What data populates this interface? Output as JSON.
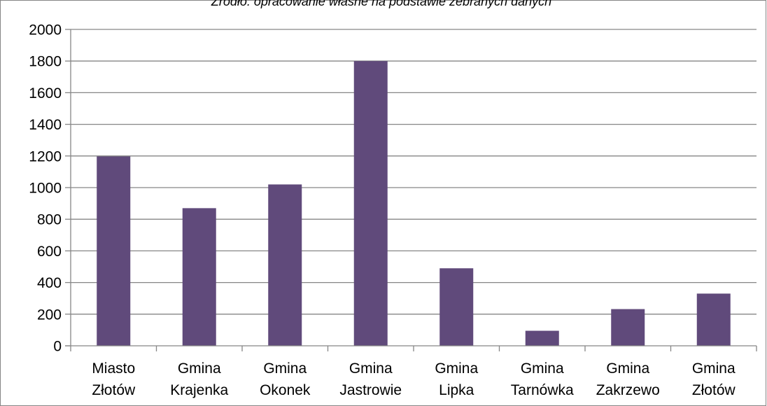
{
  "source_note": "Źródło: opracowanie własne na podstawie zebranych danych",
  "colors": {
    "bar": "#604A7B",
    "grid": "#868686",
    "axis": "#868686",
    "frame": "#868686"
  },
  "chart_data": {
    "type": "bar",
    "title": "",
    "xlabel": "",
    "ylabel": "",
    "ylim": [
      0,
      2000
    ],
    "yticks": [
      0,
      200,
      400,
      600,
      800,
      1000,
      1200,
      1400,
      1600,
      1800,
      2000
    ],
    "grid": true,
    "legend": "none",
    "categories": [
      [
        "Miasto",
        "Złotów"
      ],
      [
        "Gmina",
        "Krajenka"
      ],
      [
        "Gmina",
        "Okonek"
      ],
      [
        "Gmina",
        "Jastrowie"
      ],
      [
        "Gmina",
        "Lipka"
      ],
      [
        "Gmina",
        "Tarnówka"
      ],
      [
        "Gmina",
        "Zakrzewo"
      ],
      [
        "Gmina",
        "Złotów"
      ]
    ],
    "values": [
      1197,
      870,
      1020,
      1800,
      490,
      95,
      232,
      330
    ]
  }
}
